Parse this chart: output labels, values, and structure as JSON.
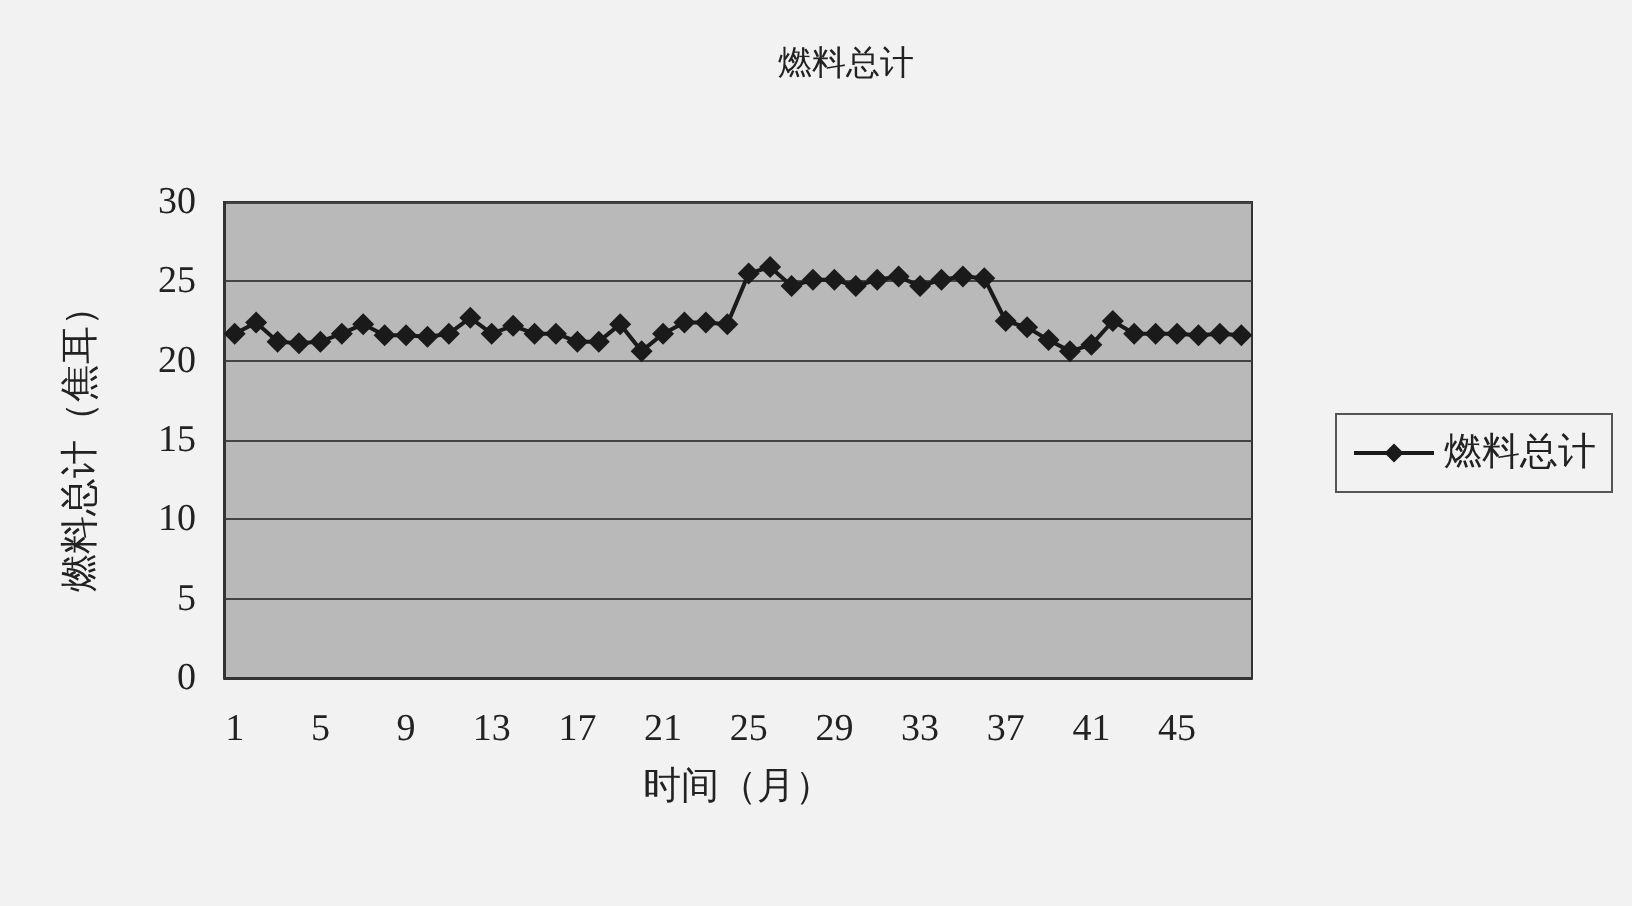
{
  "chart_data": {
    "type": "line",
    "title": "燃料总计",
    "xlabel": "时间（月）",
    "ylabel": "燃料总计（焦耳）",
    "categories": [
      "1",
      null,
      null,
      null,
      "5",
      null,
      null,
      null,
      "9",
      null,
      null,
      null,
      "13",
      null,
      null,
      null,
      "17",
      null,
      null,
      null,
      "21",
      null,
      null,
      null,
      "25",
      null,
      null,
      null,
      "29",
      null,
      null,
      null,
      "33",
      null,
      null,
      null,
      "37",
      null,
      null,
      null,
      "41",
      null,
      null,
      null,
      "45",
      null,
      null,
      null
    ],
    "series": [
      {
        "name": "燃料总计",
        "color": "#1a1a1a",
        "values": [
          21.7,
          22.4,
          21.2,
          21.1,
          21.2,
          21.7,
          22.3,
          21.6,
          21.6,
          21.5,
          21.7,
          22.7,
          21.7,
          22.2,
          21.7,
          21.7,
          21.2,
          21.2,
          22.3,
          20.6,
          21.7,
          22.4,
          22.4,
          22.3,
          25.5,
          25.9,
          24.7,
          25.1,
          25.1,
          24.7,
          25.1,
          25.3,
          24.7,
          25.1,
          25.3,
          25.2,
          22.5,
          22.1,
          21.3,
          20.6,
          21.0,
          22.5,
          21.7,
          21.7,
          21.7,
          21.6,
          21.7,
          21.6
        ]
      }
    ],
    "ylim": [
      0,
      30
    ],
    "yticks": [
      0,
      5,
      10,
      15,
      20,
      25,
      30
    ],
    "grid": "y",
    "legend": "right",
    "marker": "diamond",
    "line_style": "solid"
  }
}
